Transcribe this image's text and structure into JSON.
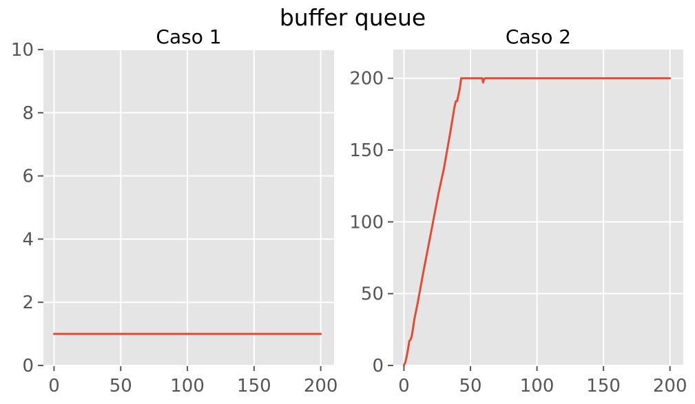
{
  "suptitle": "buffer queue",
  "colors": {
    "panel_bg": "#E5E5E5",
    "grid": "#FFFFFF",
    "line": "#E24A33",
    "tick_text": "#555555",
    "title_text": "#000000"
  },
  "chart_data": [
    {
      "type": "line",
      "title": "Caso 1",
      "xlabel": "",
      "ylabel": "",
      "xlim": [
        -8,
        210
      ],
      "ylim": [
        0,
        10
      ],
      "xticks": [
        0,
        50,
        100,
        150,
        200
      ],
      "yticks": [
        0,
        2,
        4,
        6,
        8,
        10
      ],
      "grid": true,
      "series": [
        {
          "x": [
            0,
            200
          ],
          "y": [
            1,
            1
          ]
        }
      ]
    },
    {
      "type": "line",
      "title": "Caso 2",
      "xlabel": "",
      "ylabel": "",
      "xlim": [
        -8,
        210
      ],
      "ylim": [
        0,
        220
      ],
      "xticks": [
        0,
        50,
        100,
        150,
        200
      ],
      "yticks": [
        0,
        50,
        100,
        150,
        200
      ],
      "grid": true,
      "series": [
        {
          "x": [
            0,
            1,
            2,
            3,
            4,
            5,
            6,
            8,
            10,
            15,
            20,
            25,
            26,
            30,
            35,
            38,
            39,
            40,
            42,
            43,
            50,
            59,
            59.5,
            60,
            61,
            70,
            100,
            150,
            200
          ],
          "y": [
            0,
            2,
            6,
            11,
            17,
            18,
            21,
            33,
            42,
            67,
            91,
            115,
            120,
            137,
            163,
            180,
            184,
            184,
            193,
            200,
            200,
            200,
            197,
            199,
            200,
            200,
            200,
            200,
            200
          ]
        }
      ]
    }
  ]
}
